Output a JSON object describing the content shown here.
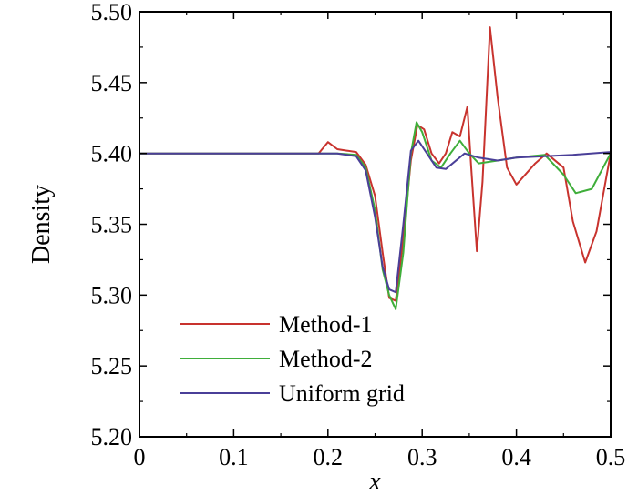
{
  "chart_data": {
    "type": "line",
    "title": "",
    "xlabel": "x",
    "ylabel": "Density",
    "xlim": [
      0,
      0.5
    ],
    "ylim": [
      5.2,
      5.5
    ],
    "xticks": [
      "0",
      "0.1",
      "0.2",
      "0.3",
      "0.4",
      "0.5"
    ],
    "yticks": [
      "5.20",
      "5.25",
      "5.30",
      "5.35",
      "5.40",
      "5.45",
      "5.50"
    ],
    "legend_position": "bottom-left",
    "grid": false,
    "series": [
      {
        "name": "Method-1",
        "color": "#c8332e",
        "points": [
          [
            0,
            5.4
          ],
          [
            0.19,
            5.4
          ],
          [
            0.2,
            5.408
          ],
          [
            0.21,
            5.403
          ],
          [
            0.22,
            5.402
          ],
          [
            0.23,
            5.401
          ],
          [
            0.24,
            5.392
          ],
          [
            0.25,
            5.37
          ],
          [
            0.258,
            5.33
          ],
          [
            0.265,
            5.298
          ],
          [
            0.272,
            5.296
          ],
          [
            0.28,
            5.34
          ],
          [
            0.288,
            5.395
          ],
          [
            0.295,
            5.42
          ],
          [
            0.302,
            5.417
          ],
          [
            0.31,
            5.4
          ],
          [
            0.318,
            5.393
          ],
          [
            0.325,
            5.4
          ],
          [
            0.332,
            5.415
          ],
          [
            0.34,
            5.412
          ],
          [
            0.348,
            5.433
          ],
          [
            0.352,
            5.39
          ],
          [
            0.358,
            5.331
          ],
          [
            0.364,
            5.38
          ],
          [
            0.372,
            5.489
          ],
          [
            0.38,
            5.44
          ],
          [
            0.39,
            5.39
          ],
          [
            0.4,
            5.378
          ],
          [
            0.42,
            5.393
          ],
          [
            0.432,
            5.4
          ],
          [
            0.45,
            5.39
          ],
          [
            0.46,
            5.352
          ],
          [
            0.473,
            5.323
          ],
          [
            0.485,
            5.345
          ],
          [
            0.5,
            5.4
          ]
        ]
      },
      {
        "name": "Method-2",
        "color": "#3fae3a",
        "points": [
          [
            0,
            5.4
          ],
          [
            0.21,
            5.4
          ],
          [
            0.23,
            5.399
          ],
          [
            0.24,
            5.39
          ],
          [
            0.25,
            5.36
          ],
          [
            0.258,
            5.318
          ],
          [
            0.265,
            5.3
          ],
          [
            0.272,
            5.29
          ],
          [
            0.28,
            5.33
          ],
          [
            0.288,
            5.4
          ],
          [
            0.294,
            5.422
          ],
          [
            0.3,
            5.415
          ],
          [
            0.31,
            5.395
          ],
          [
            0.32,
            5.39
          ],
          [
            0.33,
            5.4
          ],
          [
            0.34,
            5.409
          ],
          [
            0.35,
            5.4
          ],
          [
            0.36,
            5.393
          ],
          [
            0.38,
            5.395
          ],
          [
            0.4,
            5.397
          ],
          [
            0.43,
            5.399
          ],
          [
            0.45,
            5.385
          ],
          [
            0.463,
            5.372
          ],
          [
            0.48,
            5.375
          ],
          [
            0.5,
            5.4
          ]
        ]
      },
      {
        "name": "Uniform grid",
        "color": "#4a3f98",
        "points": [
          [
            0,
            5.4
          ],
          [
            0.21,
            5.4
          ],
          [
            0.23,
            5.398
          ],
          [
            0.24,
            5.388
          ],
          [
            0.25,
            5.355
          ],
          [
            0.258,
            5.32
          ],
          [
            0.265,
            5.304
          ],
          [
            0.272,
            5.302
          ],
          [
            0.28,
            5.35
          ],
          [
            0.288,
            5.402
          ],
          [
            0.296,
            5.409
          ],
          [
            0.305,
            5.4
          ],
          [
            0.315,
            5.39
          ],
          [
            0.325,
            5.389
          ],
          [
            0.345,
            5.4
          ],
          [
            0.36,
            5.397
          ],
          [
            0.38,
            5.395
          ],
          [
            0.4,
            5.397
          ],
          [
            0.43,
            5.398
          ],
          [
            0.46,
            5.399
          ],
          [
            0.5,
            5.401
          ]
        ]
      }
    ]
  }
}
